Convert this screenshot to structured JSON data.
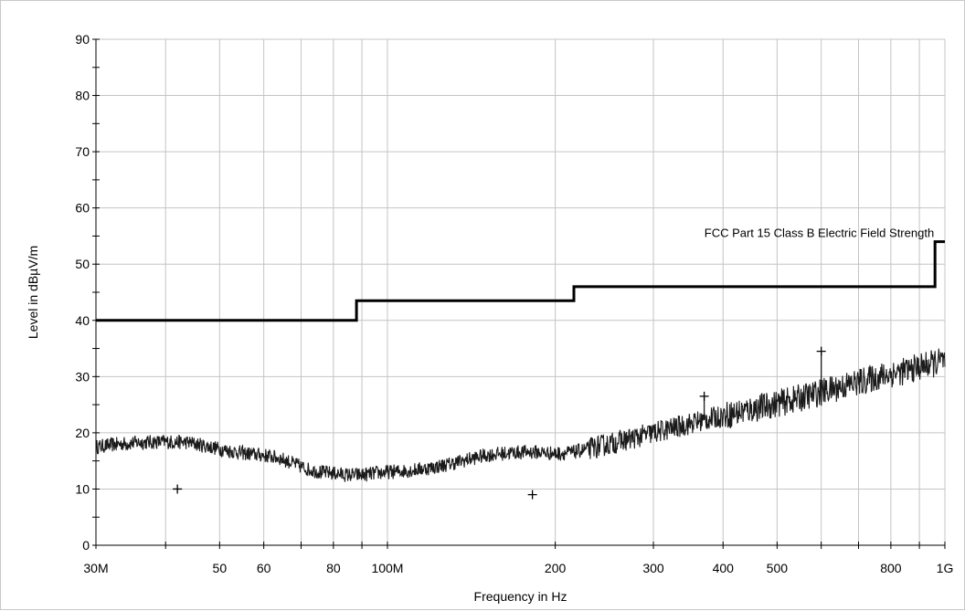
{
  "chart_data": {
    "type": "line",
    "xlabel": "Frequency in Hz",
    "ylabel": "Level in dBµV/m",
    "x_scale": "log",
    "xlim": [
      30000000,
      1000000000
    ],
    "ylim": [
      0,
      90
    ],
    "grid": true,
    "x_ticks": [
      {
        "value": 30000000,
        "label": "30M"
      },
      {
        "value": 50000000,
        "label": "50"
      },
      {
        "value": 60000000,
        "label": "60"
      },
      {
        "value": 80000000,
        "label": "80"
      },
      {
        "value": 100000000,
        "label": "100M"
      },
      {
        "value": 200000000,
        "label": "200"
      },
      {
        "value": 300000000,
        "label": "300"
      },
      {
        "value": 400000000,
        "label": "400"
      },
      {
        "value": 500000000,
        "label": "500"
      },
      {
        "value": 800000000,
        "label": "800"
      },
      {
        "value": 1000000000,
        "label": "1G"
      }
    ],
    "x_minor_gridlines": [
      40000000,
      70000000,
      90000000,
      600000000,
      700000000,
      900000000
    ],
    "y_ticks": [
      0,
      10,
      20,
      30,
      40,
      50,
      60,
      70,
      80,
      90
    ],
    "limit_line": {
      "name": "FCC Part 15 Class B Electric Field Strength",
      "x": [
        30000000,
        88000000,
        88000000,
        216000000,
        216000000,
        960000000,
        960000000,
        1000000000
      ],
      "y": [
        40,
        40,
        43.5,
        43.5,
        46,
        46,
        54,
        54
      ]
    },
    "trace": {
      "x": [
        30000000,
        33000000,
        36000000,
        40000000,
        44000000,
        48000000,
        52000000,
        56000000,
        60000000,
        64000000,
        68000000,
        72000000,
        76000000,
        80000000,
        85000000,
        90000000,
        95000000,
        100000000,
        110000000,
        120000000,
        130000000,
        140000000,
        150000000,
        160000000,
        170000000,
        180000000,
        190000000,
        200000000,
        215000000,
        230000000,
        250000000,
        280000000,
        300000000,
        330000000,
        360000000,
        400000000,
        450000000,
        500000000,
        550000000,
        600000000,
        650000000,
        700000000,
        750000000,
        800000000,
        850000000,
        900000000,
        950000000,
        1000000000
      ],
      "y": [
        17.5,
        18,
        18.3,
        18.4,
        18.3,
        17.5,
        16.8,
        16.3,
        16,
        15.5,
        14.5,
        13.5,
        13,
        12.8,
        12.5,
        12.5,
        12.8,
        13,
        13.3,
        13.8,
        14.5,
        15.3,
        16,
        16.3,
        16.5,
        16.6,
        16.5,
        16.3,
        16.5,
        17.2,
        18,
        19.2,
        20,
        21,
        22,
        23,
        24.2,
        25.2,
        26.2,
        27.2,
        28.2,
        29,
        29.8,
        30.5,
        31,
        31.7,
        32.3,
        32.8
      ]
    },
    "peaks": [
      {
        "x": 370000000,
        "y": 26.5
      },
      {
        "x": 600000000,
        "y": 34.5
      }
    ],
    "markers": [
      {
        "x": 42000000,
        "y": 10
      },
      {
        "x": 182000000,
        "y": 9
      },
      {
        "x": 370000000,
        "y": 26.5
      },
      {
        "x": 600000000,
        "y": 34.5
      }
    ]
  }
}
